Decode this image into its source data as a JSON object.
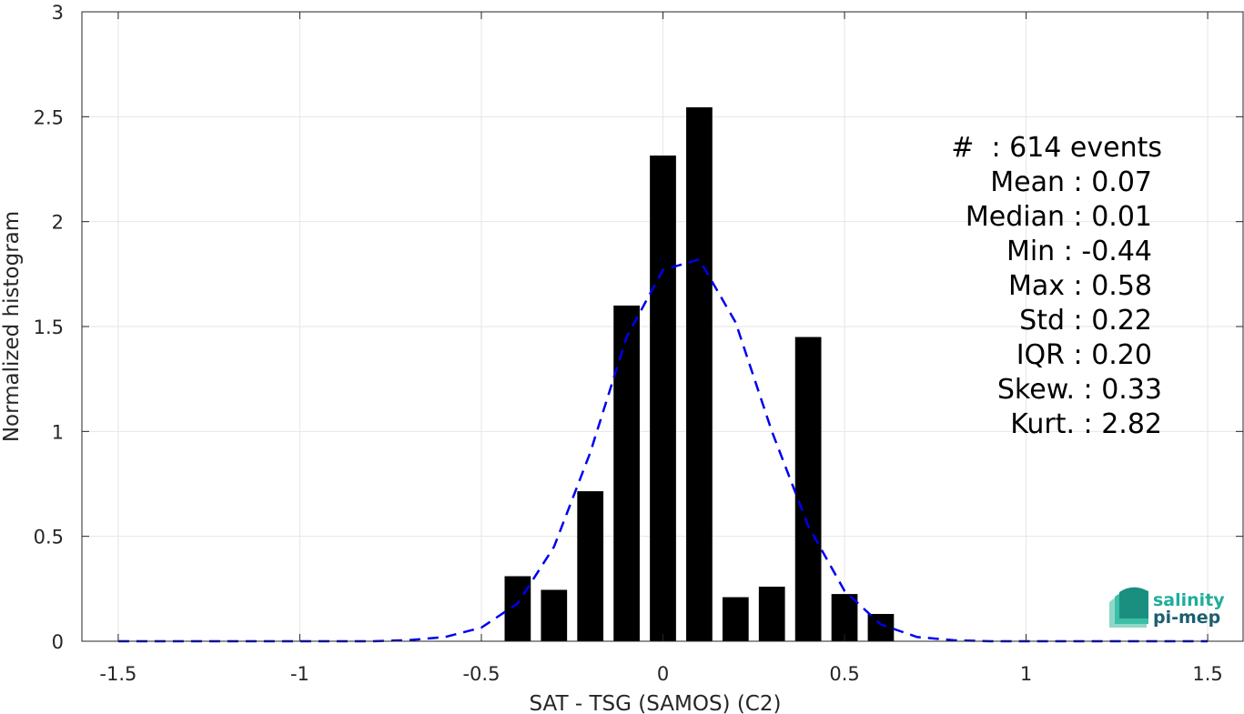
{
  "chart_data": {
    "type": "bar",
    "xlabel": "SAT - TSG (SAMOS) (C2)",
    "ylabel": "Normalized histogram",
    "xlim": [
      -1.6,
      1.6
    ],
    "ylim": [
      0,
      3
    ],
    "xticks": [
      -1.5,
      -1,
      -0.5,
      0,
      0.5,
      1,
      1.5
    ],
    "xtick_labels": [
      "-1.5",
      "-1",
      "-0.5",
      "0",
      "0.5",
      "1",
      "1.5"
    ],
    "yticks": [
      0,
      0.5,
      1,
      1.5,
      2,
      2.5,
      3
    ],
    "ytick_labels": [
      "0",
      "0.5",
      "1",
      "1.5",
      "2",
      "2.5",
      "3"
    ],
    "grid": true,
    "bar_color": "#000000",
    "bars": {
      "x": [
        -0.4,
        -0.3,
        -0.2,
        -0.1,
        0.0,
        0.1,
        0.2,
        0.3,
        0.4,
        0.5,
        0.6
      ],
      "values": [
        0.31,
        0.245,
        0.715,
        1.6,
        2.315,
        2.545,
        0.21,
        0.26,
        1.45,
        0.225,
        0.13
      ]
    },
    "fit_line": {
      "style": "dashed",
      "color": "#0000ee",
      "x": [
        -1.5,
        -1.4,
        -1.3,
        -1.2,
        -1.1,
        -1.0,
        -0.9,
        -0.8,
        -0.7,
        -0.6,
        -0.5,
        -0.4,
        -0.3,
        -0.2,
        -0.1,
        0.0,
        0.1,
        0.2,
        0.3,
        0.4,
        0.5,
        0.6,
        0.7,
        0.8,
        0.9,
        1.0,
        1.1,
        1.2,
        1.3,
        1.4,
        1.5
      ],
      "y": [
        0,
        0,
        0,
        0,
        0,
        0,
        0,
        0,
        0.005,
        0.02,
        0.065,
        0.18,
        0.45,
        0.9,
        1.45,
        1.77,
        1.82,
        1.52,
        1.0,
        0.55,
        0.24,
        0.08,
        0.02,
        0.005,
        0,
        0,
        0,
        0,
        0,
        0,
        0
      ]
    }
  },
  "stats": {
    "count_label": "#  : 614 events",
    "mean": "Mean : 0.07",
    "median": "Median : 0.01",
    "min": "Min : -0.44",
    "max": "Max : 0.58",
    "std": "Std : 0.22",
    "iqr": "IQR : 0.20",
    "skew": "Skew. : 0.33",
    "kurt": "Kurt. : 2.82"
  },
  "logo": {
    "line1": "salinity",
    "line2": "pi-mep",
    "color1": "#1fae9a",
    "color2": "#1c5f70"
  }
}
